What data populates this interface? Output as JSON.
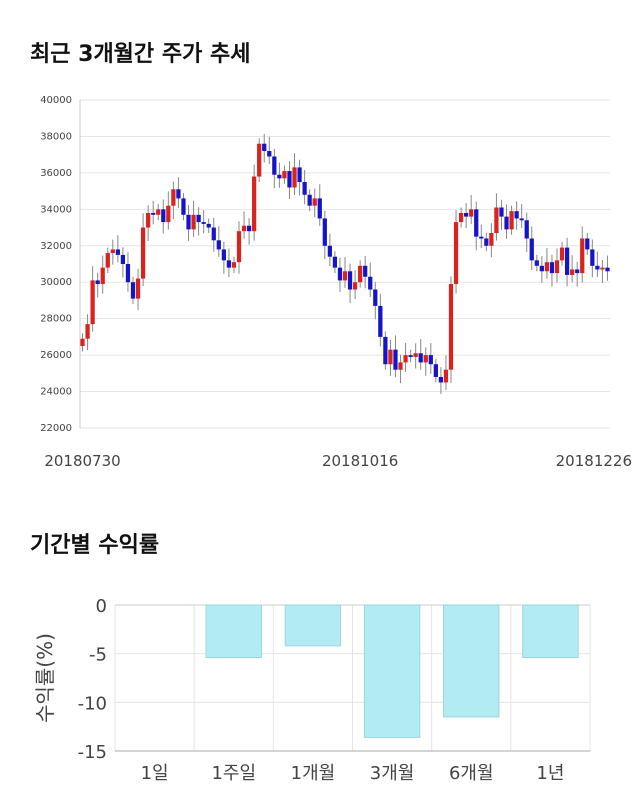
{
  "sections": {
    "candle_title": "최근 3개월간 주가 추세",
    "returns_title": "기간별 수익률"
  },
  "colors": {
    "up": "#d9231e",
    "down": "#1515c8",
    "bar_fill": "#b3ebf3",
    "bar_stroke": "#9dd6e0",
    "grid": "#e6e6e6"
  },
  "chart_data": [
    {
      "type": "candlestick",
      "title": "최근 3개월간 주가 추세",
      "ylim": [
        22000,
        40000
      ],
      "yticks": [
        22000,
        24000,
        26000,
        28000,
        30000,
        32000,
        34000,
        36000,
        38000,
        40000
      ],
      "ytick_labels": [
        "22000",
        "24000",
        "26000",
        "28000",
        "30000",
        "32000",
        "34000",
        "36000",
        "38000",
        "40000"
      ],
      "xtick_labels": [
        "20180730",
        "20181016",
        "20181226"
      ],
      "xtick_index": [
        0,
        55,
        105
      ],
      "close": [
        26900,
        27700,
        30100,
        29900,
        30800,
        31600,
        31800,
        31500,
        31000,
        30000,
        29100,
        30200,
        33000,
        33800,
        33700,
        34000,
        33300,
        34200,
        35100,
        34600,
        33700,
        32900,
        33700,
        33300,
        33200,
        33000,
        32300,
        31800,
        31200,
        30800,
        31100,
        32800,
        33100,
        32800,
        35800,
        37600,
        37200,
        36900,
        35900,
        35700,
        36100,
        35200,
        36300,
        35500,
        34800,
        34200,
        34600,
        33500,
        32000,
        31400,
        30800,
        30100,
        30600,
        29600,
        30000,
        30900,
        30300,
        29600,
        28700,
        27000,
        25500,
        26300,
        25200,
        25600,
        26000,
        25900,
        26100,
        25600,
        26000,
        25500,
        24800,
        24500,
        25200,
        29900,
        33300,
        33800,
        33600,
        34000,
        32500,
        32400,
        32000,
        32700,
        34100,
        33600,
        32900,
        33900,
        33500,
        33400,
        32400,
        31200,
        30900,
        30600,
        31100,
        30500,
        31200,
        31900,
        30400,
        30700,
        30500,
        32400,
        31800,
        30900,
        30700,
        30800,
        30600
      ]
    },
    {
      "type": "bar",
      "title": "기간별 수익률",
      "ylabel": "수익률(%)",
      "ylim": [
        -15,
        0
      ],
      "yticks": [
        0,
        -5,
        -10,
        -15
      ],
      "ytick_labels": [
        "0",
        "-5",
        "-10",
        "-15"
      ],
      "categories": [
        "1일",
        "1주일",
        "1개월",
        "3개월",
        "6개월",
        "1년"
      ],
      "values": [
        0,
        -5.4,
        -4.2,
        -13.6,
        -11.5,
        -5.4
      ]
    }
  ]
}
